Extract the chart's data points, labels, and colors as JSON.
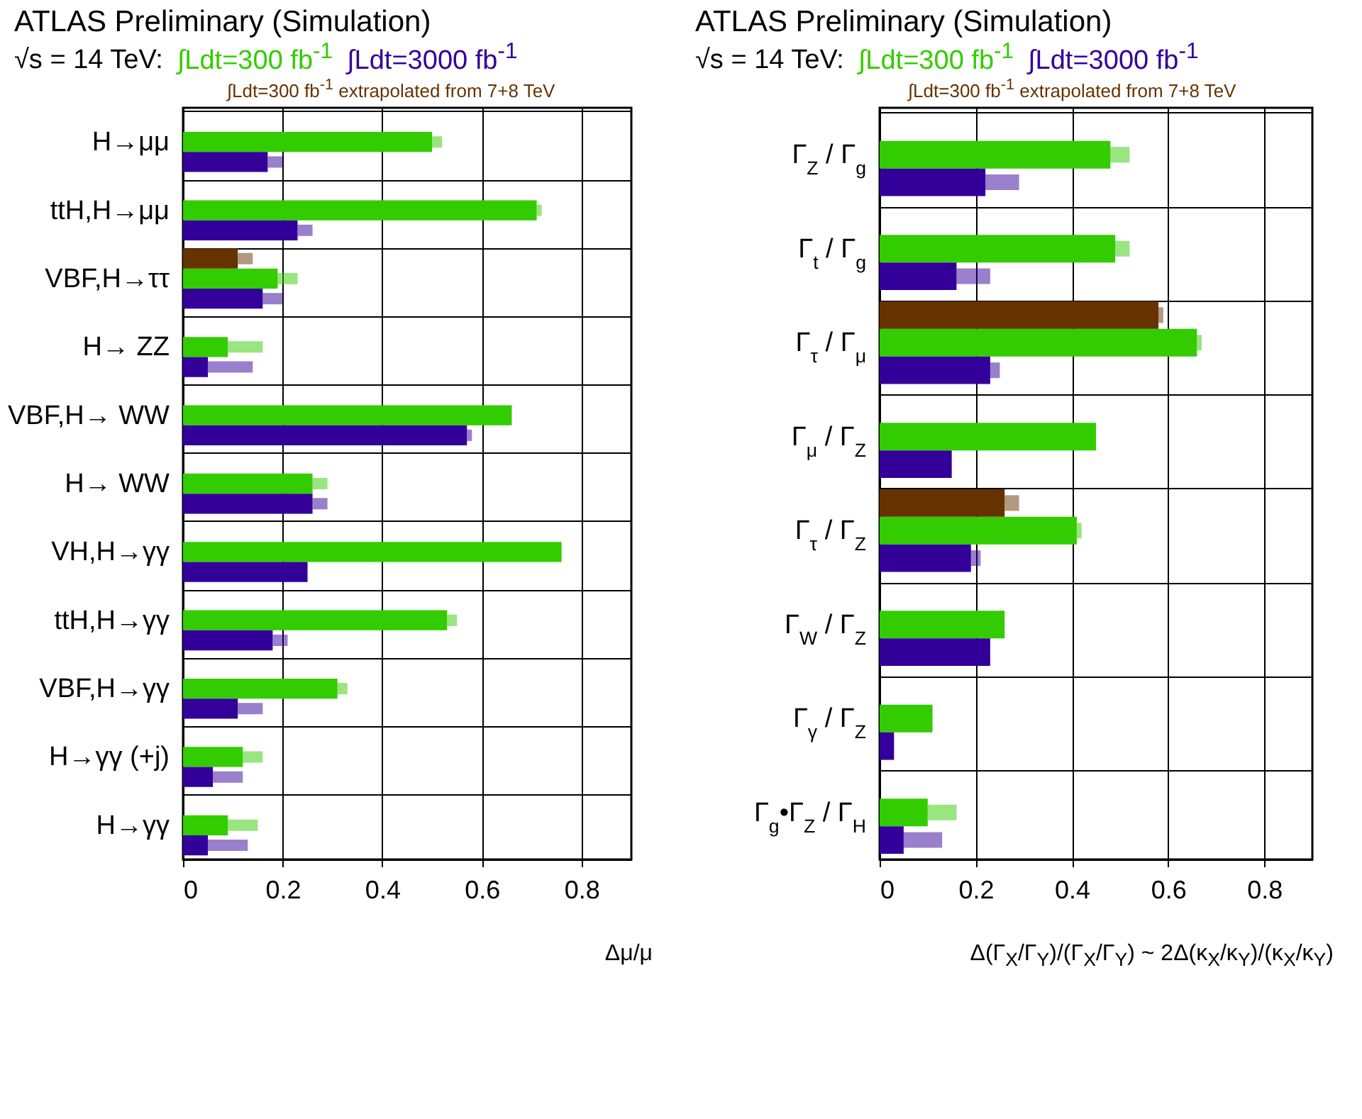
{
  "chart_data": [
    {
      "type": "bar",
      "orientation": "horizontal",
      "title": "ATLAS Preliminary (Simulation)",
      "subtitle": "√s = 14 TeV:",
      "xlabel": "Δμ/μ",
      "legend": "top",
      "grid": true,
      "categories": [
        "H→μμ",
        "ttH,H→μμ",
        "VBF,H→ττ",
        "H→ ZZ",
        "VBF,H→ WW",
        "H→ WW",
        "VH,H→γγ",
        "ttH,H→γγ",
        "VBF,H→γγ",
        "H→γγ (+j)",
        "H→γγ"
      ],
      "xlim": [
        0,
        0.9
      ],
      "xticks": [
        0,
        0.2,
        0.4,
        0.6,
        0.8
      ],
      "series": [
        {
          "name": "∫Ldt=300 fb$^{-1}$",
          "color": "#33cc00",
          "values": [
            0.5,
            0.71,
            0.19,
            0.09,
            0.66,
            0.26,
            0.76,
            0.53,
            0.31,
            0.12,
            0.09
          ],
          "errors": [
            [
              0.5,
              0.52
            ],
            [
              0.71,
              0.72
            ],
            [
              0.19,
              0.23
            ],
            [
              0.09,
              0.16
            ],
            null,
            [
              0.26,
              0.29
            ],
            null,
            [
              0.53,
              0.55
            ],
            [
              0.31,
              0.33
            ],
            [
              0.12,
              0.16
            ],
            [
              0.09,
              0.15
            ]
          ]
        },
        {
          "name": "∫Ldt=3000 fb$^{-1}$",
          "color": "#330099",
          "values": [
            0.17,
            0.23,
            0.16,
            0.05,
            0.57,
            0.26,
            0.25,
            0.18,
            0.11,
            0.06,
            0.05
          ],
          "errors": [
            [
              0.17,
              0.2
            ],
            [
              0.23,
              0.26
            ],
            [
              0.16,
              0.2
            ],
            [
              0.05,
              0.14
            ],
            [
              0.57,
              0.58
            ],
            [
              0.26,
              0.29
            ],
            null,
            [
              0.18,
              0.21
            ],
            [
              0.11,
              0.16
            ],
            [
              0.06,
              0.12
            ],
            [
              0.05,
              0.13
            ]
          ]
        },
        {
          "name": "∫Ldt=300 fb$^{-1}$ extrapolated from 7+8 TeV",
          "color": "#663300",
          "values": [
            null,
            null,
            0.11,
            null,
            null,
            null,
            null,
            null,
            null,
            null,
            null
          ],
          "errors": [
            null,
            null,
            [
              0.11,
              0.14
            ],
            null,
            null,
            null,
            null,
            null,
            null,
            null,
            null
          ]
        }
      ]
    },
    {
      "type": "bar",
      "orientation": "horizontal",
      "title": "ATLAS Preliminary (Simulation)",
      "subtitle": "√s = 14 TeV:",
      "xlabel": "Δ(Γ$_{X}$/Γ$_{Y}$)/(Γ$_{X}$/Γ$_{Y}$) ~ 2Δ(κ$_{X}$/κ$_{Y}$)/(κ$_{X}$/κ$_{Y}$)",
      "legend": "top",
      "grid": true,
      "categories": [
        "Γ$_{Z}$ / Γ$_{g}$",
        "Γ$_{t}$ / Γ$_{g}$",
        "Γ$_{τ}$ / Γ$_{μ}$",
        "Γ$_{μ}$ / Γ$_{Z}$",
        "Γ$_{τ}$ / Γ$_{Z}$",
        "Γ$_{W}$ / Γ$_{Z}$",
        "Γ$_{γ}$ / Γ$_{Z}$",
        "Γ$_{g}$•Γ$_{Z}$ / Γ$_{H}$"
      ],
      "xlim": [
        0,
        0.9
      ],
      "xticks": [
        0,
        0.2,
        0.4,
        0.6,
        0.8
      ],
      "series": [
        {
          "name": "∫Ldt=300 fb$^{-1}$",
          "color": "#33cc00",
          "values": [
            0.48,
            0.49,
            0.66,
            0.45,
            0.41,
            0.26,
            0.11,
            0.1
          ],
          "errors": [
            [
              0.48,
              0.52
            ],
            [
              0.49,
              0.52
            ],
            [
              0.66,
              0.67
            ],
            null,
            [
              0.41,
              0.42
            ],
            null,
            null,
            [
              0.1,
              0.16
            ]
          ]
        },
        {
          "name": "∫Ldt=3000 fb$^{-1}$",
          "color": "#330099",
          "values": [
            0.22,
            0.16,
            0.23,
            0.15,
            0.19,
            0.23,
            0.03,
            0.05
          ],
          "errors": [
            [
              0.22,
              0.29
            ],
            [
              0.16,
              0.23
            ],
            [
              0.23,
              0.25
            ],
            null,
            [
              0.19,
              0.21
            ],
            null,
            null,
            [
              0.05,
              0.13
            ]
          ]
        },
        {
          "name": "∫Ldt=300 fb$^{-1}$ extrapolated from 7+8 TeV",
          "color": "#663300",
          "values": [
            null,
            null,
            0.58,
            null,
            0.26,
            null,
            null,
            null
          ],
          "errors": [
            null,
            null,
            [
              0.58,
              0.59
            ],
            null,
            [
              0.26,
              0.29
            ],
            null,
            null,
            null
          ]
        }
      ]
    }
  ]
}
